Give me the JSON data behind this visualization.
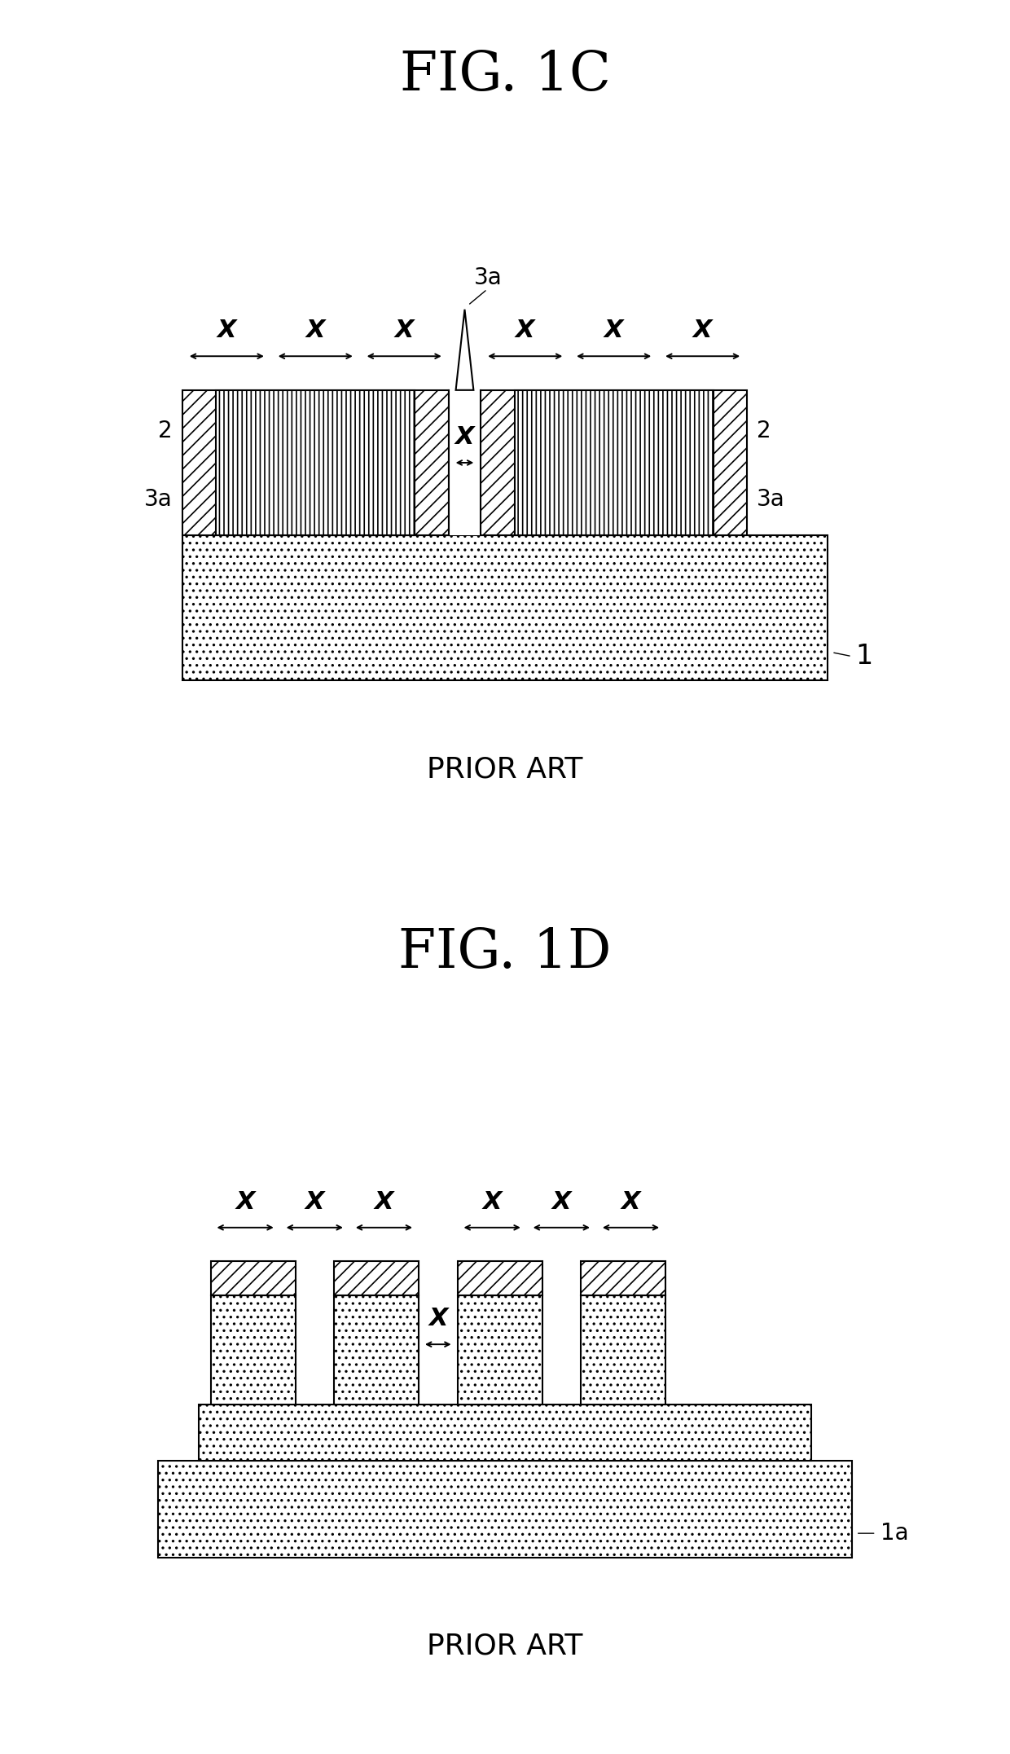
{
  "fig_title_1": "FIG. 1C",
  "fig_title_2": "FIG. 1D",
  "prior_art": "PRIOR ART",
  "bg_color": "#ffffff",
  "line_color": "#000000",
  "label_2": "2",
  "label_3a": "3a",
  "label_1": "1",
  "label_1a": "1a",
  "label_x": "X"
}
